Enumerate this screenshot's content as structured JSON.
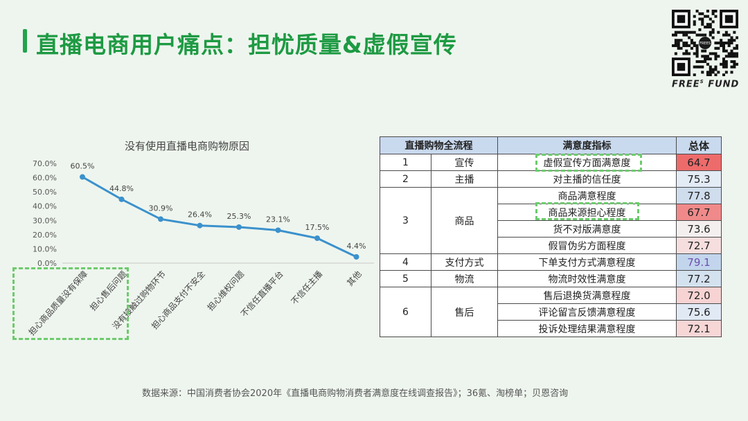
{
  "page": {
    "title": "直播电商用户痛点：担忧质量&虚假宣传",
    "brand": "FREES FUND",
    "brand_main": "FREE",
    "brand_sup": "S",
    "brand_tail": " FUND",
    "qr_center_text": "FREES",
    "source": "数据来源：中国消费者协会2020年《直播电商购物消费者满意度在线调查报告》；36氪、淘榜单；贝恩咨询",
    "colors": {
      "title": "#1e9a43",
      "line": "#3b91cc",
      "highlight_box": "#6ccb6c"
    }
  },
  "chart_data": {
    "type": "line",
    "title": "没有使用直播电商购物原因",
    "categories": [
      "担心商品质量没有保障",
      "担心售后问题",
      "没有接触过购物环节",
      "担心商品支付不安全",
      "担心维权问题",
      "不信任直播平台",
      "不信任主播",
      "其他"
    ],
    "values": [
      60.5,
      44.8,
      30.9,
      26.4,
      25.3,
      23.1,
      17.5,
      4.4
    ],
    "data_labels": [
      "60.5%",
      "44.8%",
      "30.9%",
      "26.4%",
      "25.3%",
      "23.1%",
      "17.5%",
      "4.4%"
    ],
    "y_ticks": [
      "0.0%",
      "10.0%",
      "20.0%",
      "30.0%",
      "40.0%",
      "50.0%",
      "60.0%",
      "70.0%"
    ],
    "ylim": [
      0,
      70
    ],
    "grid": false,
    "highlighted_categories": [
      "担心商品质量没有保障",
      "担心售后问题"
    ]
  },
  "table": {
    "headers": [
      "直播购物全流程",
      "满意度指标",
      "总体"
    ],
    "groups": [
      {
        "step": "1",
        "name": "宣传",
        "rows": [
          {
            "metric": "虚假宣传方面满意度",
            "value": "64.7",
            "bg": "#ee6b6b",
            "fg": "#222",
            "highlight": true
          }
        ]
      },
      {
        "step": "2",
        "name": "主播",
        "rows": [
          {
            "metric": "对主播的信任度",
            "value": "75.3",
            "bg": "#e3ebf5",
            "fg": "#222",
            "highlight": false
          }
        ]
      },
      {
        "step": "3",
        "name": "商品",
        "rows": [
          {
            "metric": "商品满意程度",
            "value": "77.8",
            "bg": "#cfdded",
            "fg": "#222",
            "highlight": false
          },
          {
            "metric": "商品来源担心程度",
            "value": "67.7",
            "bg": "#f08a8a",
            "fg": "#222",
            "highlight": true
          },
          {
            "metric": "货不对版满意度",
            "value": "73.6",
            "bg": "#f4efef",
            "fg": "#222",
            "highlight": false
          },
          {
            "metric": "假冒伪劣方面程度",
            "value": "72.7",
            "bg": "#f6dede",
            "fg": "#222",
            "highlight": false
          }
        ]
      },
      {
        "step": "4",
        "name": "支付方式",
        "rows": [
          {
            "metric": "下单支付方式满意程度",
            "value": "79.1",
            "bg": "#c2d5ec",
            "fg": "#6b4fb0",
            "highlight": false
          }
        ]
      },
      {
        "step": "5",
        "name": "物流",
        "rows": [
          {
            "metric": "物流时效性满意度",
            "value": "77.2",
            "bg": "#d4e1ef",
            "fg": "#222",
            "highlight": false
          }
        ]
      },
      {
        "step": "6",
        "name": "售后",
        "rows": [
          {
            "metric": "售后退换货满意程度",
            "value": "72.0",
            "bg": "#f7d3d3",
            "fg": "#222",
            "highlight": false
          },
          {
            "metric": "评论留言反馈满意程度",
            "value": "75.6",
            "bg": "#e1e9f4",
            "fg": "#222",
            "highlight": false
          },
          {
            "metric": "投诉处理结果满意程度",
            "value": "72.1",
            "bg": "#f7d6d6",
            "fg": "#222",
            "highlight": false
          }
        ]
      }
    ]
  }
}
